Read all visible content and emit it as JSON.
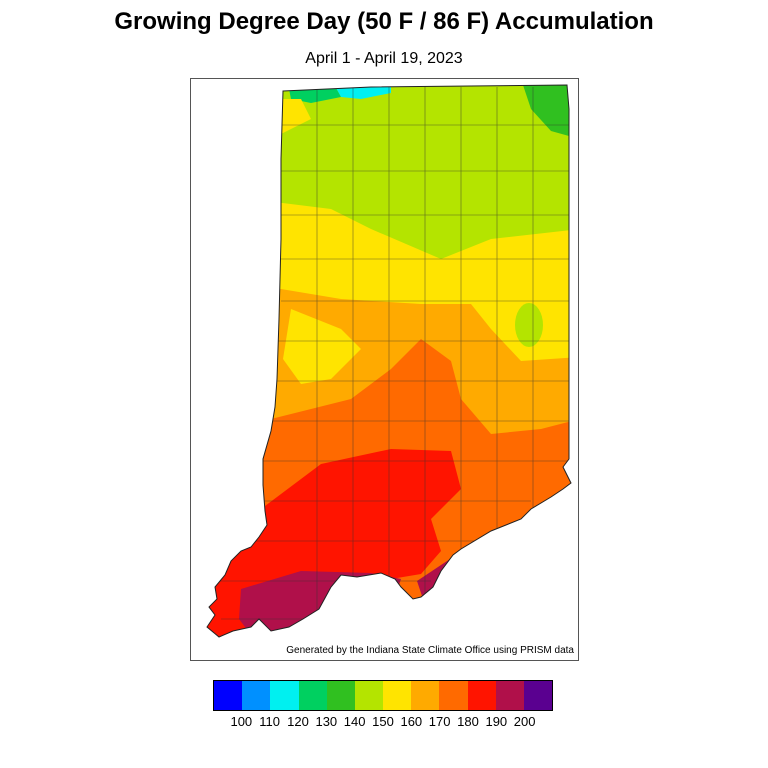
{
  "title": "Growing Degree Day (50 F / 86 F) Accumulation",
  "subtitle": "April 1 - April 19, 2023",
  "credit": "Generated by the Indiana State Climate Office using PRISM data",
  "legend": {
    "bins": [
      {
        "color": "#0000ff"
      },
      {
        "color": "#0090ff"
      },
      {
        "color": "#00f0f0"
      },
      {
        "color": "#00d060"
      },
      {
        "color": "#30c020"
      },
      {
        "color": "#b4e400"
      },
      {
        "color": "#ffe400"
      },
      {
        "color": "#ffaa00"
      },
      {
        "color": "#ff6a00"
      },
      {
        "color": "#ff1400"
      },
      {
        "color": "#b0104a"
      },
      {
        "color": "#5a0090"
      }
    ],
    "labels": [
      "100",
      "110",
      "120",
      "130",
      "140",
      "150",
      "160",
      "170",
      "180",
      "190",
      "200"
    ]
  },
  "map": {
    "region": "Indiana",
    "colors": {
      "v130": "#00d060",
      "v120": "#00f0f0",
      "v140": "#30c020",
      "v150": "#b4e400",
      "v160": "#ffe400",
      "v170": "#ffaa00",
      "v180": "#ff6a00",
      "v190": "#ff1400",
      "v200": "#b0104a",
      "v210": "#5a0090"
    }
  }
}
